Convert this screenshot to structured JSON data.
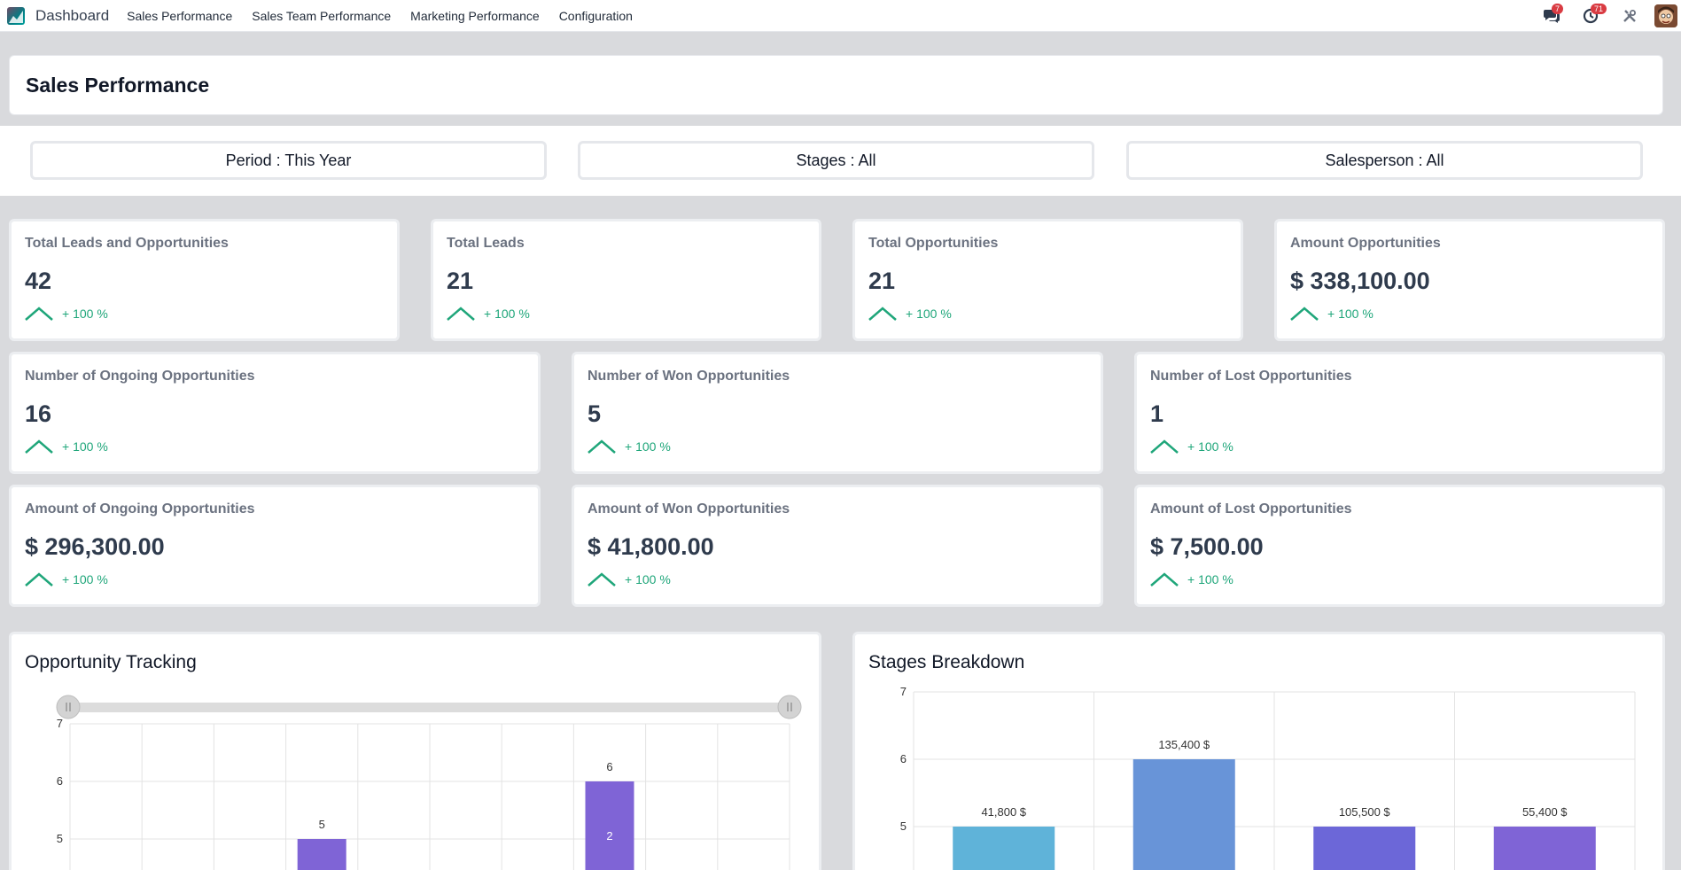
{
  "navbar": {
    "brand": "Dashboard",
    "menu": [
      "Sales Performance",
      "Sales Team Performance",
      "Marketing Performance",
      "Configuration"
    ],
    "messages_badge": "7",
    "activities_badge": "71"
  },
  "page": {
    "title": "Sales Performance"
  },
  "filters": {
    "period": "Period : This Year",
    "stages": "Stages : All",
    "salesperson": "Salesperson : All"
  },
  "kpis": [
    {
      "label": "Total Leads and Opportunities",
      "value": "42",
      "trend": "+ 100 %"
    },
    {
      "label": "Total Leads",
      "value": "21",
      "trend": "+ 100 %"
    },
    {
      "label": "Total Opportunities",
      "value": "21",
      "trend": "+ 100 %"
    },
    {
      "label": "Amount Opportunities",
      "value": "$ 338,100.00",
      "trend": "+ 100 %"
    },
    {
      "label": "Number of Ongoing Opportunities",
      "value": "16",
      "trend": "+ 100 %"
    },
    {
      "label": "Number of Won Opportunities",
      "value": "5",
      "trend": "+ 100 %"
    },
    {
      "label": "Number of Lost Opportunities",
      "value": "1",
      "trend": "+ 100 %"
    },
    {
      "label": "Amount of Ongoing Opportunities",
      "value": "$ 296,300.00",
      "trend": "+ 100 %"
    },
    {
      "label": "Amount of Won Opportunities",
      "value": "$ 41,800.00",
      "trend": "+ 100 %"
    },
    {
      "label": "Amount of Lost Opportunities",
      "value": "$ 7,500.00",
      "trend": "+ 100 %"
    }
  ],
  "colors": {
    "trend_up": "#1fa67a",
    "opportunity_bar": "#7f64d6",
    "stage_colors": [
      "#5fb3d9",
      "#6894d8",
      "#6c67d8",
      "#7f64d6"
    ]
  },
  "chart_data": [
    {
      "type": "bar",
      "title": "Opportunity Tracking",
      "ylim": [
        4,
        7
      ],
      "yticks": [
        "5",
        "6",
        "7"
      ],
      "grid": true,
      "range_slider": true,
      "bars": [
        {
          "slot": 3,
          "value": 5,
          "label": "5",
          "inner_label": ""
        },
        {
          "slot": 7,
          "value": 6,
          "label": "6",
          "inner_label": "2"
        }
      ],
      "slots": 10
    },
    {
      "type": "bar",
      "title": "Stages Breakdown",
      "ylim": [
        4,
        7
      ],
      "yticks": [
        "5",
        "6",
        "7"
      ],
      "grid": true,
      "values": [
        5,
        6,
        5,
        5
      ],
      "labels": [
        "41,800 $",
        "135,400 $",
        "105,500 $",
        "55,400 $"
      ]
    }
  ]
}
